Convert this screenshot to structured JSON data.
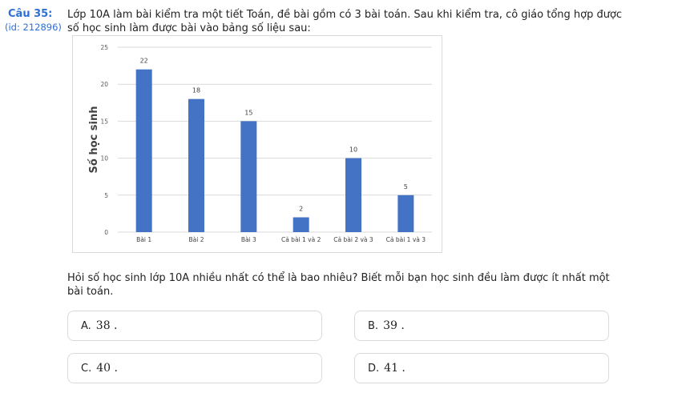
{
  "question": {
    "number": "Câu 35:",
    "id": "(id: 212896)",
    "text": "Lớp 10A làm bài kiểm tra một tiết Toán, đề bài gồm có 3 bài toán. Sau khi kiểm tra, cô giáo tổng hợp được số học sinh làm được bài vào bảng số liệu sau:",
    "followup": "Hỏi số học sinh lớp 10A nhiều nhất có thể là bao nhiêu? Biết mỗi bạn học sinh đều làm được ít nhất một bài toán."
  },
  "chart_data": {
    "type": "bar",
    "categories": [
      "Bài 1",
      "Bài 2",
      "Bài 3",
      "Cả bài 1 và 2",
      "Cả bài 2 và 3",
      "Cả bài 1 và 3"
    ],
    "values": [
      22,
      18,
      15,
      2,
      10,
      5
    ],
    "title": "",
    "xlabel": "",
    "ylabel": "Số học sinh",
    "ylim": [
      0,
      25
    ],
    "yticks": [
      0,
      5,
      10,
      15,
      20,
      25
    ],
    "grid": true,
    "data_labels": true,
    "bar_color": "#4472c4",
    "legend": "none"
  },
  "options": [
    {
      "letter": "A.",
      "value": "38 ."
    },
    {
      "letter": "B.",
      "value": "39 ."
    },
    {
      "letter": "C.",
      "value": "40 ."
    },
    {
      "letter": "D.",
      "value": "41 ."
    }
  ]
}
